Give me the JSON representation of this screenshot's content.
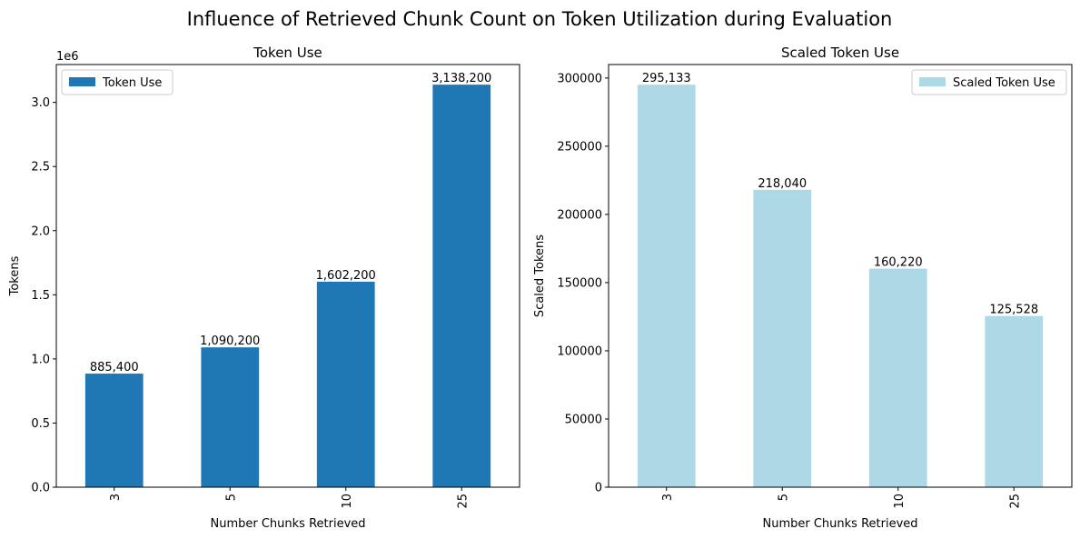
{
  "figure": {
    "suptitle": "Influence of Retrieved Chunk Count on Token Utilization during Evaluation"
  },
  "chart_data": [
    {
      "type": "bar",
      "title": "Token Use",
      "xlabel": "Number Chunks Retrieved",
      "ylabel": "Tokens",
      "offset_text": "1e6",
      "categories": [
        "3",
        "5",
        "10",
        "25"
      ],
      "series": [
        {
          "name": "Token Use",
          "values": [
            885400,
            1090200,
            1602200,
            3138200
          ],
          "color": "#1f77b4"
        }
      ],
      "data_labels": [
        "885,400",
        "1,090,200",
        "1,602,200",
        "3,138,200"
      ],
      "ylim": [
        0,
        3295110
      ],
      "yticks": [
        0,
        500000,
        1000000,
        1500000,
        2000000,
        2500000,
        3000000
      ],
      "ytick_labels": [
        "0.0",
        "0.5",
        "1.0",
        "1.5",
        "2.0",
        "2.5",
        "3.0"
      ],
      "legend_position": "upper-left",
      "grid": false
    },
    {
      "type": "bar",
      "title": "Scaled Token Use",
      "xlabel": "Number Chunks Retrieved",
      "ylabel": "Scaled Tokens",
      "categories": [
        "3",
        "5",
        "10",
        "25"
      ],
      "series": [
        {
          "name": "Scaled Token Use",
          "values": [
            295133,
            218040,
            160220,
            125528
          ],
          "color": "#add8e6"
        }
      ],
      "data_labels": [
        "295,133",
        "218,040",
        "160,220",
        "125,528"
      ],
      "ylim": [
        0,
        309890
      ],
      "yticks": [
        0,
        50000,
        100000,
        150000,
        200000,
        250000,
        300000
      ],
      "ytick_labels": [
        "0",
        "50000",
        "100000",
        "150000",
        "200000",
        "250000",
        "300000"
      ],
      "legend_position": "upper-right",
      "grid": false
    }
  ]
}
